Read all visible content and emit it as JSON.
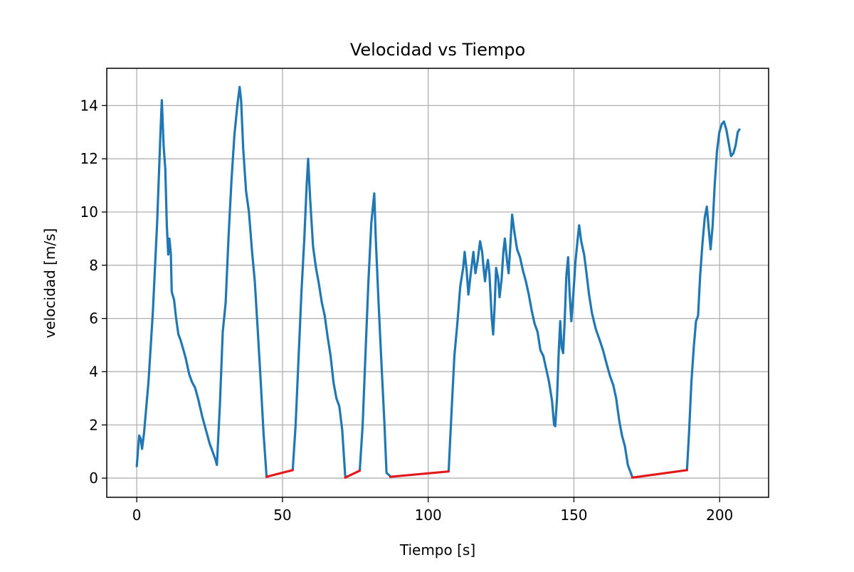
{
  "chart_data": {
    "type": "line",
    "title": "Velocidad vs Tiempo",
    "xlabel": "Tiempo [s]",
    "ylabel": "velocidad [m/s]",
    "xlim": [
      -10.3,
      216.8
    ],
    "ylim": [
      -0.72,
      15.4
    ],
    "xticks": [
      0,
      50,
      100,
      150,
      200
    ],
    "yticks": [
      0,
      2,
      4,
      6,
      8,
      10,
      12,
      14
    ],
    "grid": true,
    "legend": "none",
    "series": [
      {
        "color": "#1f77b4",
        "segments": [
          [
            [
              0,
              0.45
            ],
            [
              0.8,
              1.6
            ],
            [
              1.3,
              1.5
            ],
            [
              1.8,
              1.1
            ],
            [
              2.5,
              1.7
            ],
            [
              4,
              3.6
            ],
            [
              5.5,
              6.2
            ],
            [
              7,
              9.6
            ],
            [
              8.2,
              13.2
            ],
            [
              8.6,
              14.2
            ],
            [
              9.2,
              12.5
            ],
            [
              9.8,
              11.6
            ],
            [
              10.3,
              9.5
            ],
            [
              10.8,
              8.4
            ],
            [
              11.2,
              9.0
            ],
            [
              11.7,
              8.4
            ],
            [
              12,
              7.0
            ],
            [
              12.8,
              6.7
            ],
            [
              13.5,
              6.0
            ],
            [
              14.3,
              5.4
            ],
            [
              15,
              5.2
            ],
            [
              15.8,
              4.9
            ],
            [
              16.8,
              4.5
            ],
            [
              18,
              3.9
            ],
            [
              19,
              3.6
            ],
            [
              20,
              3.4
            ],
            [
              21,
              3.0
            ],
            [
              22.5,
              2.3
            ],
            [
              24,
              1.7
            ],
            [
              25,
              1.3
            ],
            [
              26,
              1.0
            ],
            [
              27,
              0.7
            ],
            [
              27.5,
              0.5
            ],
            [
              28.5,
              2.7
            ],
            [
              29.5,
              5.5
            ],
            [
              30.5,
              6.6
            ],
            [
              31.5,
              9.1
            ],
            [
              32.5,
              11.2
            ],
            [
              33.5,
              12.9
            ],
            [
              34.5,
              14.0
            ],
            [
              35.3,
              14.7
            ],
            [
              35.8,
              14.2
            ],
            [
              36.5,
              12.4
            ],
            [
              37.5,
              10.8
            ],
            [
              38.5,
              10.0
            ],
            [
              39.5,
              8.6
            ],
            [
              40.5,
              7.4
            ],
            [
              41.5,
              5.6
            ],
            [
              42.5,
              3.7
            ],
            [
              43.5,
              1.7
            ],
            [
              44.5,
              0.12
            ]
          ],
          [
            [
              53.5,
              0.3
            ],
            [
              54.5,
              2.0
            ],
            [
              55.5,
              4.5
            ],
            [
              56.5,
              7.0
            ],
            [
              57.5,
              9.0
            ],
            [
              58.3,
              11.0
            ],
            [
              58.8,
              12.0
            ],
            [
              59.5,
              10.5
            ],
            [
              60.5,
              8.7
            ],
            [
              61.5,
              7.9
            ],
            [
              62.5,
              7.3
            ],
            [
              63.5,
              6.6
            ],
            [
              64.5,
              6.1
            ],
            [
              65.5,
              5.3
            ],
            [
              66.5,
              4.6
            ],
            [
              67.5,
              3.6
            ],
            [
              68.5,
              3.0
            ],
            [
              69.5,
              2.7
            ],
            [
              70.5,
              1.8
            ],
            [
              71.5,
              0.1
            ]
          ],
          [
            [
              76.5,
              0.28
            ],
            [
              77.5,
              2.0
            ],
            [
              78.5,
              4.7
            ],
            [
              79.5,
              7.4
            ],
            [
              80.5,
              9.6
            ],
            [
              81.5,
              10.7
            ],
            [
              82,
              9.0
            ],
            [
              83,
              6.5
            ],
            [
              84,
              4.2
            ],
            [
              85,
              2.0
            ],
            [
              85.7,
              0.2
            ],
            [
              87,
              0.07
            ]
          ],
          [
            [
              107,
              0.25
            ],
            [
              108,
              2.5
            ],
            [
              109,
              4.6
            ],
            [
              110,
              5.8
            ],
            [
              111,
              7.2
            ],
            [
              112,
              7.9
            ],
            [
              112.5,
              8.5
            ],
            [
              113.2,
              7.8
            ],
            [
              113.8,
              6.9
            ],
            [
              114.5,
              7.6
            ],
            [
              115.5,
              8.5
            ],
            [
              116.2,
              7.7
            ],
            [
              117,
              8.2
            ],
            [
              117.8,
              8.9
            ],
            [
              118.5,
              8.5
            ],
            [
              119,
              7.9
            ],
            [
              119.5,
              7.4
            ],
            [
              120,
              7.9
            ],
            [
              120.5,
              8.2
            ],
            [
              121,
              7.7
            ],
            [
              121.8,
              6.0
            ],
            [
              122.3,
              5.4
            ],
            [
              122.8,
              6.5
            ],
            [
              123.3,
              7.9
            ],
            [
              124,
              7.5
            ],
            [
              124.5,
              6.8
            ],
            [
              125.2,
              7.5
            ],
            [
              125.8,
              8.5
            ],
            [
              126.3,
              9.0
            ],
            [
              127,
              8.2
            ],
            [
              127.6,
              7.7
            ],
            [
              128.2,
              8.8
            ],
            [
              128.8,
              9.9
            ],
            [
              129.5,
              9.3
            ],
            [
              130.5,
              8.6
            ],
            [
              131.5,
              8.3
            ],
            [
              132.5,
              7.8
            ],
            [
              133.5,
              7.4
            ],
            [
              134.5,
              6.9
            ],
            [
              135.5,
              6.3
            ],
            [
              136.5,
              5.8
            ],
            [
              137.5,
              5.5
            ],
            [
              138.5,
              4.8
            ],
            [
              139.5,
              4.6
            ],
            [
              140.5,
              4.1
            ],
            [
              141.5,
              3.6
            ],
            [
              142.5,
              2.9
            ],
            [
              143.2,
              2.0
            ],
            [
              143.6,
              1.95
            ],
            [
              144.2,
              3.0
            ],
            [
              144.8,
              4.8
            ],
            [
              145.3,
              5.9
            ],
            [
              145.8,
              4.9
            ],
            [
              146.3,
              4.7
            ],
            [
              146.8,
              5.8
            ],
            [
              147.4,
              7.6
            ],
            [
              148,
              8.3
            ],
            [
              148.5,
              7.0
            ],
            [
              149.1,
              5.9
            ],
            [
              149.8,
              6.9
            ],
            [
              150.5,
              8.1
            ],
            [
              151.2,
              8.9
            ],
            [
              151.8,
              9.5
            ],
            [
              152.5,
              8.9
            ],
            [
              153.5,
              8.4
            ],
            [
              154.3,
              7.7
            ],
            [
              155.2,
              6.9
            ],
            [
              156.2,
              6.2
            ],
            [
              157.5,
              5.6
            ],
            [
              158.8,
              5.2
            ],
            [
              160,
              4.8
            ],
            [
              161.2,
              4.3
            ],
            [
              162.5,
              3.8
            ],
            [
              163.5,
              3.5
            ],
            [
              164.5,
              3.0
            ],
            [
              165.5,
              2.2
            ],
            [
              166.5,
              1.6
            ],
            [
              167.5,
              1.2
            ],
            [
              168.5,
              0.5
            ],
            [
              169.5,
              0.2
            ],
            [
              170,
              0.05
            ]
          ],
          [
            [
              188.8,
              0.3
            ],
            [
              189.5,
              1.7
            ],
            [
              190.3,
              3.6
            ],
            [
              191.1,
              4.9
            ],
            [
              191.9,
              5.9
            ],
            [
              192.6,
              6.1
            ],
            [
              193.3,
              7.6
            ],
            [
              194.1,
              8.8
            ],
            [
              194.9,
              9.8
            ],
            [
              195.6,
              10.2
            ],
            [
              196.3,
              9.3
            ],
            [
              196.9,
              8.6
            ],
            [
              197.6,
              9.5
            ],
            [
              198.3,
              11.0
            ],
            [
              199.1,
              12.3
            ],
            [
              199.9,
              13.0
            ],
            [
              200.7,
              13.3
            ],
            [
              201.5,
              13.4
            ],
            [
              202.3,
              13.1
            ],
            [
              203.1,
              12.6
            ],
            [
              203.9,
              12.1
            ],
            [
              204.7,
              12.2
            ],
            [
              205.5,
              12.5
            ],
            [
              206.2,
              13.0
            ],
            [
              206.8,
              13.1
            ]
          ]
        ]
      },
      {
        "color": "#e31a1c",
        "segments": [
          [
            [
              44.5,
              0.05
            ],
            [
              53.5,
              0.3
            ]
          ],
          [
            [
              71.5,
              0.02
            ],
            [
              76.5,
              0.28
            ]
          ],
          [
            [
              87,
              0.05
            ],
            [
              107,
              0.25
            ]
          ],
          [
            [
              170,
              0.02
            ],
            [
              188.8,
              0.3
            ]
          ]
        ]
      }
    ]
  }
}
